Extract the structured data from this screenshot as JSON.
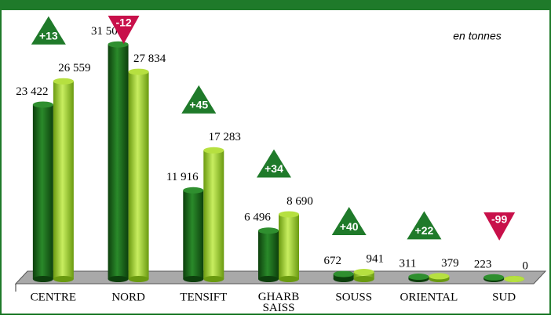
{
  "chart_data": {
    "type": "bar",
    "subtitle": "en tonnes",
    "categories": [
      "CENTRE",
      "NORD",
      "TENSIFT",
      "GHARB SAISS",
      "SOUSS",
      "ORIENTAL",
      "SUD"
    ],
    "series": [
      {
        "color": "#1f6e1f",
        "values": [
          23422,
          31506,
          11916,
          6496,
          672,
          311,
          223
        ],
        "value_labels": [
          "23 422",
          "31 506",
          "11 916",
          "6 496",
          "672",
          "311",
          "223"
        ]
      },
      {
        "color": "#9acd2a",
        "values": [
          26559,
          27834,
          17283,
          8690,
          941,
          379,
          0
        ],
        "value_labels": [
          "26 559",
          "27 834",
          "17 283",
          "8 690",
          "941",
          "379",
          "0"
        ]
      }
    ],
    "annotations": [
      "+13",
      "-12",
      "+45",
      "+34",
      "+40",
      "+22",
      "-99"
    ],
    "up_color": "#1f7a2a",
    "down_color": "#c8104a",
    "ylim": [
      0,
      32000
    ]
  }
}
